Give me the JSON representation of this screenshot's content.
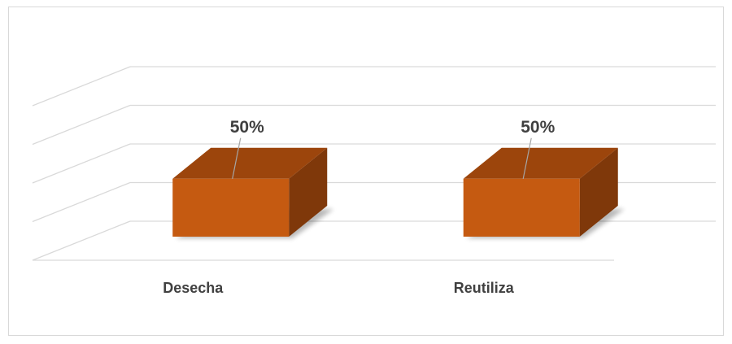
{
  "chart_data": {
    "type": "bar",
    "variant": "3d-column",
    "categories": [
      "Desecha",
      "Reutiliza"
    ],
    "values": [
      50,
      50
    ],
    "data_labels": [
      "50%",
      "50%"
    ],
    "value_unit": "%",
    "ylim": [
      0,
      100
    ],
    "grid": true,
    "legend": "none",
    "colors": {
      "front": "#c55a11",
      "top": "#9c450c",
      "side": "#7f380a",
      "grid": "#d9d9d9",
      "text": "#404040"
    }
  }
}
